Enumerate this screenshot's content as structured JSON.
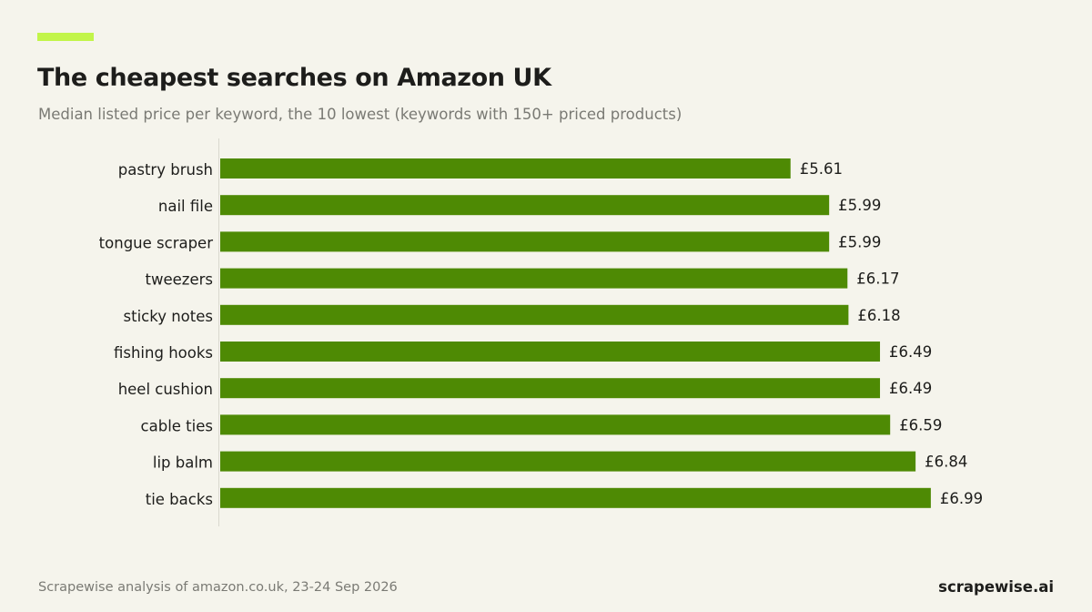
{
  "header": {
    "title": "The cheapest searches on Amazon UK",
    "subtitle": "Median listed price per keyword, the 10 lowest (keywords with 150+ priced products)"
  },
  "footer": {
    "source": "Scrapewise analysis of amazon.co.uk, 23-24 Sep 2026",
    "brand": "scrapewise.ai"
  },
  "colors": {
    "accent": "#c2f54a",
    "bar": "#4e8a04",
    "axis": "#d9d8cf"
  },
  "chart_data": {
    "type": "bar",
    "orientation": "horizontal",
    "title": "The cheapest searches on Amazon UK",
    "subtitle": "Median listed price per keyword, the 10 lowest (keywords with 150+ priced products)",
    "categories": [
      "pastry brush",
      "nail file",
      "tongue scraper",
      "tweezers",
      "sticky notes",
      "fishing hooks",
      "heel cushion",
      "cable ties",
      "lip balm",
      "tie backs"
    ],
    "values": [
      5.61,
      5.99,
      5.99,
      6.17,
      6.18,
      6.49,
      6.49,
      6.59,
      6.84,
      6.99
    ],
    "value_labels": [
      "£5.61",
      "£5.99",
      "£5.99",
      "£6.17",
      "£6.18",
      "£6.49",
      "£6.49",
      "£6.59",
      "£6.84",
      "£6.99"
    ],
    "xlim": [
      0,
      7
    ],
    "grid": false,
    "legend": "none"
  }
}
